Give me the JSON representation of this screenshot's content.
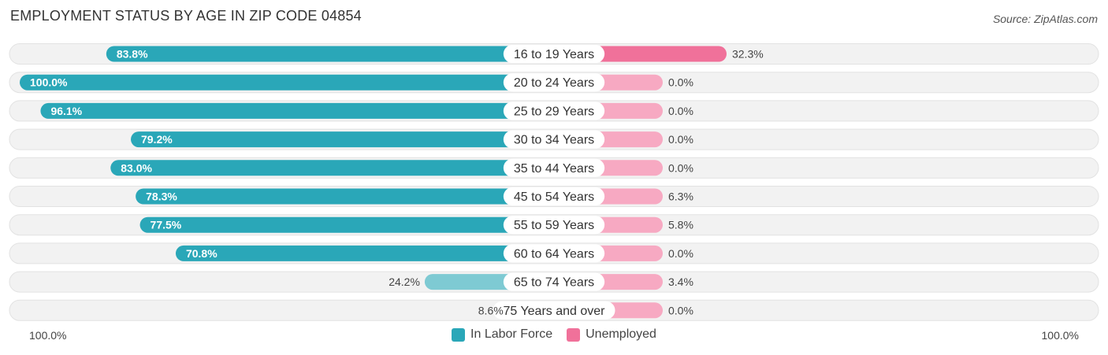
{
  "header": {
    "title": "EMPLOYMENT STATUS BY AGE IN ZIP CODE 04854",
    "source": "Source: ZipAtlas.com"
  },
  "axis": {
    "left_label": "100.0%",
    "right_label": "100.0%"
  },
  "legend": {
    "in_labor_force": "In Labor Force",
    "unemployed": "Unemployed"
  },
  "colors": {
    "labor_strong": "#2aa7b8",
    "labor_light": "#7ecad3",
    "unemployed_strong": "#f0719a",
    "unemployed_light": "#f7a9c2",
    "track": "#f2f2f2",
    "track_border": "#e2e2e2"
  },
  "chart_data": {
    "type": "bar",
    "orientation": "diverging-horizontal",
    "title": "EMPLOYMENT STATUS BY AGE IN ZIP CODE 04854",
    "categories": [
      "16 to 19 Years",
      "20 to 24 Years",
      "25 to 29 Years",
      "30 to 34 Years",
      "35 to 44 Years",
      "45 to 54 Years",
      "55 to 59 Years",
      "60 to 64 Years",
      "65 to 74 Years",
      "75 Years and over"
    ],
    "series": [
      {
        "name": "In Labor Force",
        "values": [
          83.8,
          100.0,
          96.1,
          79.2,
          83.0,
          78.3,
          77.5,
          70.8,
          24.2,
          8.6
        ],
        "labels": [
          "83.8%",
          "100.0%",
          "96.1%",
          "79.2%",
          "83.0%",
          "78.3%",
          "77.5%",
          "70.8%",
          "24.2%",
          "8.6%"
        ]
      },
      {
        "name": "Unemployed",
        "values": [
          32.3,
          0.0,
          0.0,
          0.0,
          0.0,
          6.3,
          5.8,
          0.0,
          3.4,
          0.0
        ],
        "labels": [
          "32.3%",
          "0.0%",
          "0.0%",
          "0.0%",
          "0.0%",
          "6.3%",
          "5.8%",
          "0.0%",
          "3.4%",
          "0.0%"
        ]
      }
    ],
    "xlim": [
      -100,
      100
    ],
    "legend_position": "bottom-center"
  }
}
